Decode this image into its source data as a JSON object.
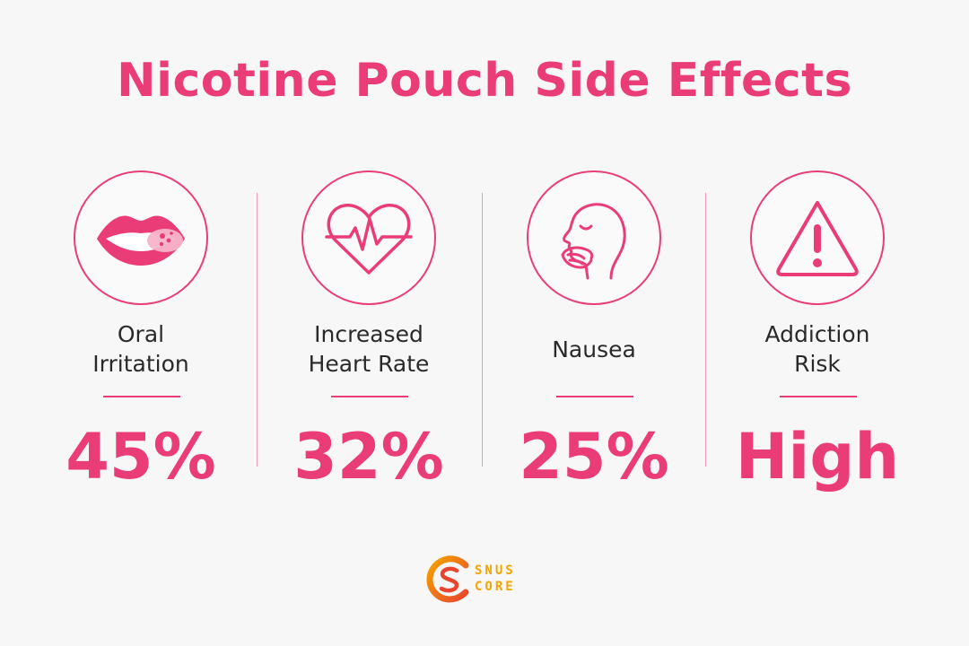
{
  "title": "Nicotine Pouch Side Effects",
  "colors": {
    "accent": "#ea3d78",
    "divider": "#ef9bb8",
    "text": "#2a2a2a",
    "logo_orange": "#f5a400",
    "logo_red": "#e8452c"
  },
  "stats": [
    {
      "icon": "lips-icon",
      "label_lines": [
        "Oral",
        "Irritation"
      ],
      "value": "45%"
    },
    {
      "icon": "heart-rate-icon",
      "label_lines": [
        "Increased",
        "Heart Rate"
      ],
      "value": "32%"
    },
    {
      "icon": "nausea-icon",
      "label_lines": [
        "Nausea"
      ],
      "value": "25%"
    },
    {
      "icon": "warning-icon",
      "label_lines": [
        "Addiction",
        "Risk"
      ],
      "value": "High"
    }
  ],
  "logo": {
    "line1": "SNUS",
    "line2": "CORE"
  }
}
